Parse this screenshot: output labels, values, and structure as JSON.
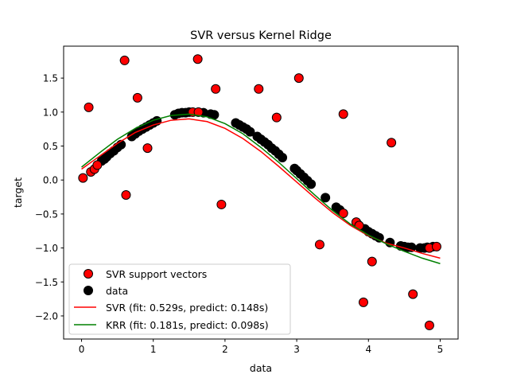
{
  "chart_data": {
    "type": "scatter",
    "title": "SVR versus Kernel Ridge",
    "xlabel": "data",
    "ylabel": "target",
    "xlim": [
      -0.25,
      5.25
    ],
    "ylim": [
      -2.34,
      1.97
    ],
    "xticks": [
      0,
      1,
      2,
      3,
      4,
      5
    ],
    "yticks": [
      -2.0,
      -1.5,
      -1.0,
      -0.5,
      0.0,
      0.5,
      1.0,
      1.5
    ],
    "ytick_labels": [
      "−2.0",
      "−1.5",
      "−1.0",
      "−0.5",
      "0.0",
      "0.5",
      "1.0",
      "1.5"
    ],
    "grid": false,
    "legend_position": "lower-left",
    "series": [
      {
        "name": "data",
        "kind": "scatter",
        "color": "#000000",
        "points": [
          [
            0.28,
            0.28
          ],
          [
            0.32,
            0.31
          ],
          [
            0.35,
            0.34
          ],
          [
            0.4,
            0.39
          ],
          [
            0.45,
            0.43
          ],
          [
            0.5,
            0.48
          ],
          [
            0.55,
            0.52
          ],
          [
            0.7,
            0.64
          ],
          [
            0.75,
            0.68
          ],
          [
            0.8,
            0.72
          ],
          [
            0.85,
            0.75
          ],
          [
            0.9,
            0.78
          ],
          [
            0.95,
            0.81
          ],
          [
            1.0,
            0.84
          ],
          [
            1.05,
            0.87
          ],
          [
            1.3,
            0.96
          ],
          [
            1.35,
            0.98
          ],
          [
            1.4,
            0.99
          ],
          [
            1.45,
            0.99
          ],
          [
            1.5,
            1.0
          ],
          [
            1.7,
            0.99
          ],
          [
            1.8,
            0.97
          ],
          [
            1.85,
            0.96
          ],
          [
            2.15,
            0.84
          ],
          [
            2.2,
            0.81
          ],
          [
            2.25,
            0.78
          ],
          [
            2.3,
            0.75
          ],
          [
            2.35,
            0.71
          ],
          [
            2.45,
            0.64
          ],
          [
            2.5,
            0.6
          ],
          [
            2.55,
            0.56
          ],
          [
            2.6,
            0.52
          ],
          [
            2.65,
            0.47
          ],
          [
            2.7,
            0.43
          ],
          [
            2.75,
            0.38
          ],
          [
            2.8,
            0.33
          ],
          [
            2.97,
            0.17
          ],
          [
            3.0,
            0.14
          ],
          [
            3.05,
            0.09
          ],
          [
            3.1,
            0.04
          ],
          [
            3.15,
            -0.01
          ],
          [
            3.2,
            -0.06
          ],
          [
            3.4,
            -0.26
          ],
          [
            3.55,
            -0.4
          ],
          [
            3.6,
            -0.44
          ],
          [
            3.85,
            -0.65
          ],
          [
            3.95,
            -0.72
          ],
          [
            4.0,
            -0.76
          ],
          [
            4.05,
            -0.79
          ],
          [
            4.1,
            -0.82
          ],
          [
            4.15,
            -0.85
          ],
          [
            4.3,
            -0.92
          ],
          [
            4.45,
            -0.97
          ],
          [
            4.5,
            -0.98
          ],
          [
            4.55,
            -0.99
          ],
          [
            4.6,
            -0.99
          ],
          [
            4.72,
            -1.0
          ],
          [
            4.78,
            -1.0
          ],
          [
            4.82,
            -0.99
          ],
          [
            4.9,
            -0.98
          ]
        ]
      },
      {
        "name": "SVR support vectors",
        "kind": "scatter",
        "color": "#ff0000",
        "points": [
          [
            0.02,
            0.03
          ],
          [
            0.1,
            1.07
          ],
          [
            0.13,
            0.12
          ],
          [
            0.18,
            0.16
          ],
          [
            0.22,
            0.22
          ],
          [
            0.6,
            1.76
          ],
          [
            0.62,
            -0.22
          ],
          [
            0.78,
            1.21
          ],
          [
            0.92,
            0.47
          ],
          [
            1.55,
            1.0
          ],
          [
            1.63,
            1.0
          ],
          [
            1.62,
            1.78
          ],
          [
            1.87,
            1.34
          ],
          [
            1.95,
            -0.36
          ],
          [
            2.47,
            1.34
          ],
          [
            2.72,
            0.92
          ],
          [
            3.03,
            1.5
          ],
          [
            3.32,
            -0.95
          ],
          [
            3.65,
            0.97
          ],
          [
            3.65,
            -0.49
          ],
          [
            3.83,
            -0.62
          ],
          [
            3.87,
            -0.67
          ],
          [
            3.93,
            -1.8
          ],
          [
            4.05,
            -1.2
          ],
          [
            4.32,
            0.55
          ],
          [
            4.62,
            -1.68
          ],
          [
            4.85,
            -1.0
          ],
          [
            4.85,
            -2.14
          ],
          [
            4.95,
            -0.98
          ]
        ]
      },
      {
        "name": "SVR (fit: 0.529s, predict: 0.148s)",
        "kind": "line",
        "color": "#ff0000",
        "x": [
          0,
          0.25,
          0.5,
          0.75,
          1,
          1.25,
          1.5,
          1.75,
          2,
          2.25,
          2.5,
          2.75,
          3,
          3.25,
          3.5,
          3.75,
          4,
          4.25,
          4.5,
          4.75,
          5
        ],
        "y": [
          0.16,
          0.35,
          0.54,
          0.7,
          0.81,
          0.88,
          0.9,
          0.86,
          0.76,
          0.61,
          0.42,
          0.2,
          -0.03,
          -0.26,
          -0.48,
          -0.67,
          -0.82,
          -0.93,
          -1.0,
          -1.08,
          -1.15
        ]
      },
      {
        "name": "KRR (fit: 0.181s, predict: 0.098s)",
        "kind": "line",
        "color": "#008000",
        "x": [
          0,
          0.25,
          0.5,
          0.75,
          1,
          1.25,
          1.5,
          1.75,
          2,
          2.25,
          2.5,
          2.75,
          3,
          3.25,
          3.5,
          3.75,
          4,
          4.25,
          4.5,
          4.75,
          5
        ],
        "y": [
          0.19,
          0.4,
          0.6,
          0.76,
          0.88,
          0.95,
          0.97,
          0.93,
          0.83,
          0.68,
          0.48,
          0.26,
          0.02,
          -0.22,
          -0.45,
          -0.65,
          -0.81,
          -0.94,
          -1.05,
          -1.15,
          -1.23
        ]
      }
    ]
  }
}
